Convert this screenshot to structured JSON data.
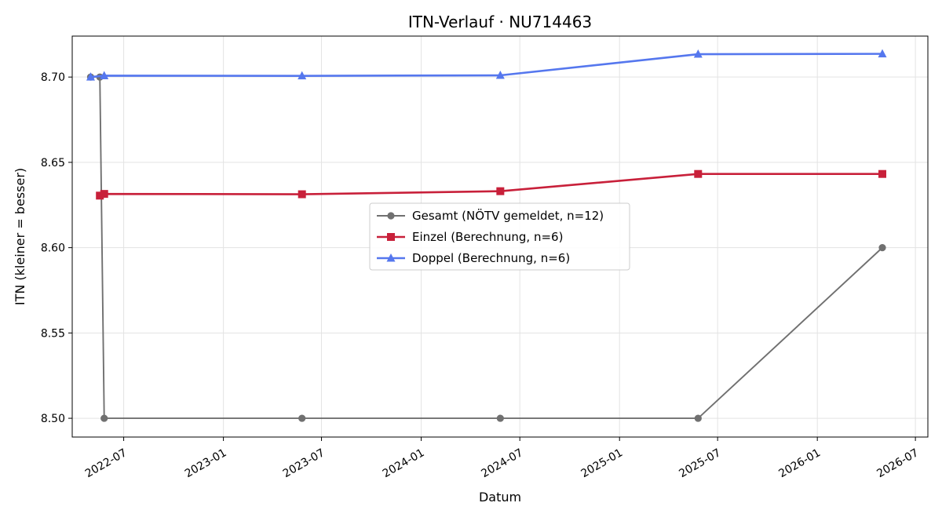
{
  "chart_data": {
    "type": "line",
    "title": "ITN-Verlauf · NU714463",
    "xlabel": "Datum",
    "ylabel": "ITN  (kleiner = besser)",
    "x_axis": "date",
    "xlim": [
      "2022-03-28",
      "2026-07-24"
    ],
    "ylim": [
      8.489,
      8.724
    ],
    "xticks": [
      "2022-07-01",
      "2023-01-01",
      "2023-07-01",
      "2024-01-01",
      "2024-07-01",
      "2025-01-01",
      "2025-07-01",
      "2026-01-01",
      "2026-07-01"
    ],
    "xtick_labels": [
      "2022-07",
      "2023-01",
      "2023-07",
      "2024-01",
      "2024-07",
      "2025-01",
      "2025-07",
      "2026-01",
      "2026-07"
    ],
    "yticks": [
      8.5,
      8.55,
      8.6,
      8.65,
      8.7
    ],
    "ytick_labels": [
      "8.50",
      "8.55",
      "8.60",
      "8.65",
      "8.70"
    ],
    "grid": true,
    "legend_position": "center",
    "series": [
      {
        "name": "Gesamt (NÖTV gemeldet, n=12)",
        "color": "#707070",
        "marker": "circle",
        "points": [
          {
            "x": "2022-05-01",
            "y": 8.7
          },
          {
            "x": "2022-05-18",
            "y": 8.7
          },
          {
            "x": "2022-05-26",
            "y": 8.5
          },
          {
            "x": "2023-05-26",
            "y": 8.5
          },
          {
            "x": "2024-05-26",
            "y": 8.5
          },
          {
            "x": "2025-05-26",
            "y": 8.5
          },
          {
            "x": "2026-05-01",
            "y": 8.6
          }
        ]
      },
      {
        "name": "Einzel (Berechnung, n=6)",
        "color": "#c8203a",
        "marker": "square",
        "points": [
          {
            "x": "2022-05-18",
            "y": 8.6305
          },
          {
            "x": "2022-05-26",
            "y": 8.6315
          },
          {
            "x": "2023-05-26",
            "y": 8.6313
          },
          {
            "x": "2024-05-26",
            "y": 8.6331
          },
          {
            "x": "2025-05-26",
            "y": 8.6432
          },
          {
            "x": "2026-05-01",
            "y": 8.6432
          }
        ]
      },
      {
        "name": "Doppel (Berechnung, n=6)",
        "color": "#5577ee",
        "marker": "triangle",
        "points": [
          {
            "x": "2022-05-01",
            "y": 8.7
          },
          {
            "x": "2022-05-26",
            "y": 8.7008
          },
          {
            "x": "2023-05-26",
            "y": 8.7007
          },
          {
            "x": "2024-05-26",
            "y": 8.701
          },
          {
            "x": "2025-05-26",
            "y": 8.7134
          },
          {
            "x": "2026-05-01",
            "y": 8.7136
          }
        ]
      }
    ]
  }
}
